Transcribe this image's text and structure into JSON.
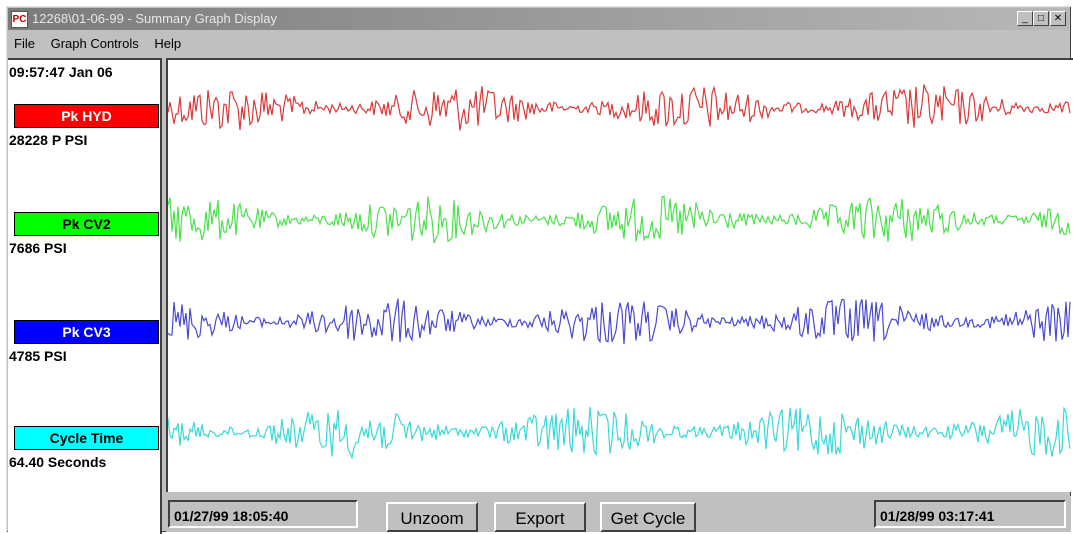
{
  "window": {
    "title": "12268\\01-06-99 - Summary Graph Display",
    "icon_text": "PC",
    "controls": {
      "minimize": "_",
      "maximize": "□",
      "close": "✕"
    }
  },
  "menu": [
    "File",
    "Graph Controls",
    "Help"
  ],
  "left_panel": {
    "time": "09:57:47 Jan 06",
    "channels": [
      {
        "label": "Pk HYD",
        "value": "28228 P PSI",
        "color": "#ff0000",
        "text_color": "#ffffff"
      },
      {
        "label": "Pk CV2",
        "value": "7686 PSI",
        "color": "#00ff00",
        "text_color": "#000000"
      },
      {
        "label": "Pk CV3",
        "value": "4785 PSI",
        "color": "#0000ff",
        "text_color": "#ffffff"
      },
      {
        "label": "Cycle Time",
        "value": "64.40 Seconds",
        "color": "#00ffff",
        "text_color": "#000000"
      }
    ]
  },
  "trace_colors": [
    "#d93a3a",
    "#4de04d",
    "#4a4ad0",
    "#3ad8d8"
  ],
  "bottom": {
    "start_date": "01/27/99 18:05:40",
    "end_date": "01/28/99 03:17:41",
    "unzoom_label": "Unzoom",
    "export_label": "Export",
    "get_cycle_label": "Get Cycle"
  }
}
